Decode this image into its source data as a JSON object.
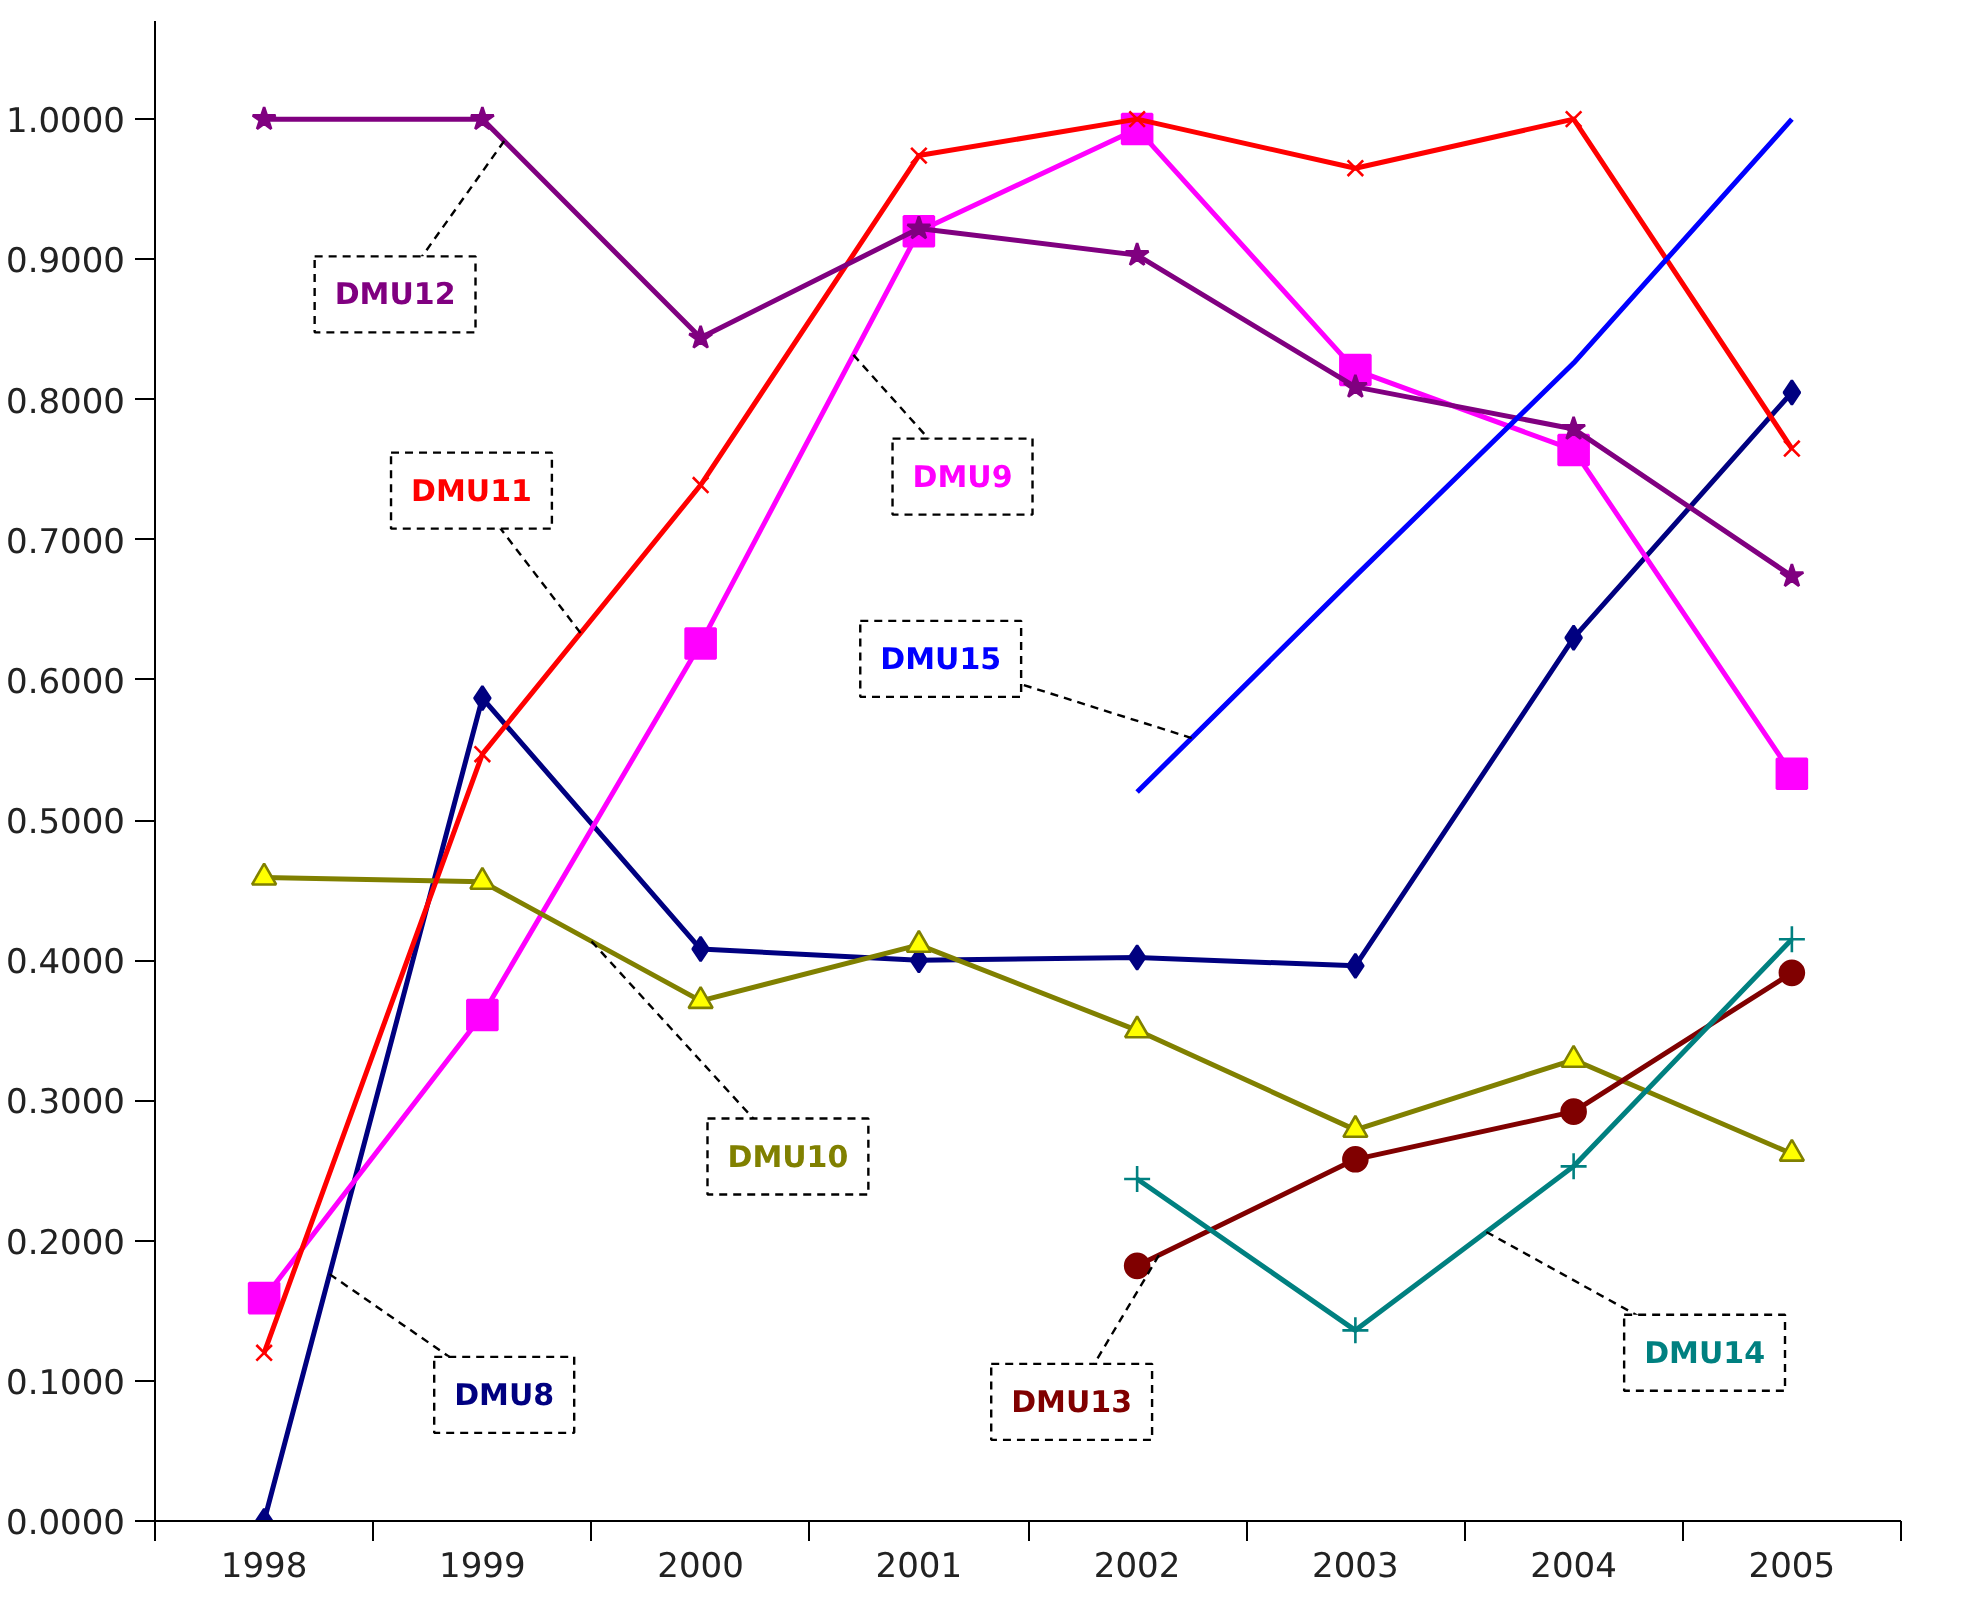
{
  "chart_data": {
    "type": "line",
    "categories": [
      "1998",
      "1999",
      "2000",
      "2001",
      "2002",
      "2003",
      "2004",
      "2005"
    ],
    "ylim": [
      0,
      1.07
    ],
    "yticks": [
      {
        "value": 0,
        "label": "0.0000"
      },
      {
        "value": 0.1,
        "label": "0.1000"
      },
      {
        "value": 0.2,
        "label": "0.2000"
      },
      {
        "value": 0.3,
        "label": "0.3000"
      },
      {
        "value": 0.4,
        "label": "0.4000"
      },
      {
        "value": 0.5,
        "label": "0.5000"
      },
      {
        "value": 0.6,
        "label": "0.6000"
      },
      {
        "value": 0.7,
        "label": "0.7000"
      },
      {
        "value": 0.8,
        "label": "0.8000"
      },
      {
        "value": 0.9,
        "label": "0.9000"
      },
      {
        "value": 1,
        "label": "1.0000"
      }
    ],
    "grid": false,
    "legend": false,
    "series": [
      {
        "name": "DMU8",
        "color": "#000080",
        "marker": "diamond",
        "values": [
          0.0,
          0.587,
          0.408,
          0.4,
          0.402,
          0.396,
          0.63,
          0.805
        ]
      },
      {
        "name": "DMU9",
        "color": "#ff00ff",
        "marker": "square",
        "values": [
          0.159,
          0.361,
          0.626,
          0.92,
          0.993,
          0.821,
          0.764,
          0.533
        ]
      },
      {
        "name": "DMU10",
        "color": "#808000",
        "marker": "triangle",
        "values": [
          0.459,
          0.456,
          0.371,
          0.411,
          0.35,
          0.279,
          0.329,
          0.262
        ]
      },
      {
        "name": "DMU11",
        "color": "#ff0000",
        "marker": "x",
        "values": [
          0.12,
          0.547,
          0.739,
          0.974,
          1.0,
          0.965,
          1.0,
          0.765
        ]
      },
      {
        "name": "DMU12",
        "color": "#800080",
        "marker": "star",
        "values": [
          1.0,
          1.0,
          0.844,
          0.922,
          0.903,
          0.809,
          0.779,
          0.674
        ]
      },
      {
        "name": "DMU13",
        "color": "#800000",
        "marker": "circle",
        "values": [
          null,
          null,
          null,
          null,
          0.182,
          0.258,
          0.292,
          0.391
        ]
      },
      {
        "name": "DMU14",
        "color": "#008080",
        "marker": "cross",
        "values": [
          null,
          null,
          null,
          null,
          0.244,
          0.136,
          0.253,
          0.415
        ]
      },
      {
        "name": "DMU15",
        "color": "#0000ff",
        "marker": "none",
        "values": [
          null,
          null,
          null,
          null,
          0.52,
          0.674,
          0.826,
          1.0
        ]
      }
    ]
  }
}
